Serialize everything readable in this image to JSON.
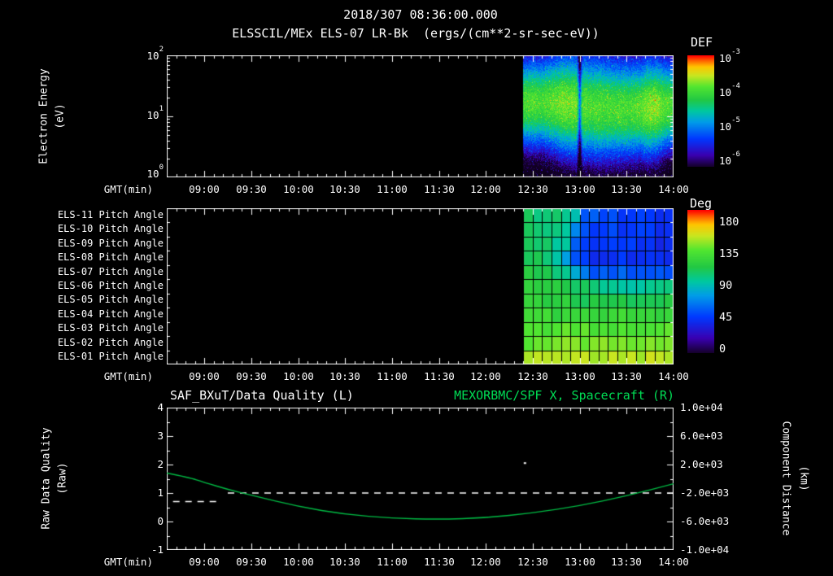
{
  "colors": {
    "background": "#000000",
    "foreground": "#ffffff",
    "title_green": "#00dd55",
    "curve_green": "#00bb44"
  },
  "header": {
    "datetime": "2018/307 08:36:00.000",
    "spectrogram_title": "ELSSCIL/MEx ELS-07 LR-Bk  (ergs/(cm**2-sr-sec-eV))"
  },
  "time_axis": {
    "label": "GMT(min)",
    "start": "08:36",
    "end": "14:00",
    "tick_labels": [
      "09:00",
      "09:30",
      "10:00",
      "10:30",
      "11:00",
      "11:30",
      "12:00",
      "12:30",
      "13:00",
      "13:30",
      "14:00"
    ]
  },
  "panel_energy": {
    "ylabel": [
      "Electron Energy",
      "(eV)"
    ],
    "ytick_exponents": [
      {
        "base": "10",
        "exp": "2"
      },
      {
        "base": "10",
        "exp": "1"
      },
      {
        "base": "10",
        "exp": "0"
      }
    ],
    "colorbar": {
      "title": "DEF",
      "ticks": [
        {
          "base": "10",
          "exp": "-3"
        },
        {
          "base": "10",
          "exp": "-4"
        },
        {
          "base": "10",
          "exp": "-5"
        },
        {
          "base": "10",
          "exp": "-6"
        }
      ]
    }
  },
  "panel_pitch": {
    "row_labels": [
      "ELS-11 Pitch Angle",
      "ELS-10 Pitch Angle",
      "ELS-09 Pitch Angle",
      "ELS-08 Pitch Angle",
      "ELS-07 Pitch Angle",
      "ELS-06 Pitch Angle",
      "ELS-05 Pitch Angle",
      "ELS-04 Pitch Angle",
      "ELS-03 Pitch Angle",
      "ELS-02 Pitch Angle",
      "ELS-01 Pitch Angle"
    ],
    "colorbar": {
      "title": "Deg",
      "tick_labels": [
        "180",
        "135",
        "90",
        "45",
        "0"
      ]
    }
  },
  "panel_quality": {
    "title_left": "SAF_BXuT/Data Quality (L)",
    "title_right": "MEXORBMC/SPF X, Spacecraft (R)",
    "ylabel_left": [
      "Raw Data Quality",
      "(Raw)"
    ],
    "ylabel_right": [
      "Component Distance",
      "(km)"
    ],
    "ytick_labels_left": [
      "4",
      "3",
      "2",
      "1",
      "0",
      "-1"
    ],
    "ytick_labels_right": [
      "1.0e+04",
      "6.0e+03",
      "2.0e+03",
      "-2.0e+03",
      "-6.0e+03",
      "-1.0e+04"
    ]
  },
  "chart_data": [
    {
      "type": "heatmap",
      "panel": "electron-energy-spectrogram",
      "title": "ELSSCIL/MEx ELS-07 LR-Bk",
      "units": "ergs/(cm**2-sr-sec-eV)",
      "colorbar_label": "DEF",
      "colorbar_range_log10": [
        -6,
        -3
      ],
      "x_range": [
        "08:36",
        "14:00"
      ],
      "y_axis": "Electron Energy (eV)",
      "y_range_ev": [
        1,
        100
      ],
      "y_scale": "log",
      "data_start": "12:24",
      "data_end": "14:00",
      "render_model": {
        "peak_log10_flux": -3.95,
        "peak_center_logE": 1.18,
        "bright_patches_rel_x": [
          0.3,
          0.86
        ],
        "dropout_time": "13:00",
        "description": "No data (black) before ~12:24. Bright green band ~7-40 eV near 1e-4, blue above ~60 eV, cyan fading to dark below ~5 eV, near-black with violet speckles below ~2 eV; brief dark dropout column near 13:00."
      }
    },
    {
      "type": "heatmap",
      "panel": "pitch-angles",
      "value_label": "Pitch Angle (Deg)",
      "value_range": [
        0,
        180
      ],
      "data_start": "12:24",
      "data_end": "14:00",
      "cell_minutes": 6,
      "rows": [
        {
          "label": "ELS-11",
          "points": [
            [
              "12:24",
              102
            ],
            [
              "12:54",
              96
            ],
            [
              "13:04",
              52
            ],
            [
              "14:00",
              42
            ]
          ]
        },
        {
          "label": "ELS-10",
          "points": [
            [
              "12:24",
              104
            ],
            [
              "12:52",
              94
            ],
            [
              "13:02",
              48
            ],
            [
              "14:00",
              40
            ]
          ]
        },
        {
          "label": "ELS-09",
          "points": [
            [
              "12:24",
              106
            ],
            [
              "12:50",
              92
            ],
            [
              "13:00",
              46
            ],
            [
              "14:00",
              38
            ]
          ]
        },
        {
          "label": "ELS-08",
          "points": [
            [
              "12:24",
              108
            ],
            [
              "12:48",
              90
            ],
            [
              "12:58",
              44
            ],
            [
              "14:00",
              40
            ]
          ]
        },
        {
          "label": "ELS-07",
          "points": [
            [
              "12:24",
              110
            ],
            [
              "12:52",
              96
            ],
            [
              "13:06",
              56
            ],
            [
              "14:00",
              50
            ]
          ]
        },
        {
          "label": "ELS-06",
          "points": [
            [
              "12:24",
              114
            ],
            [
              "13:02",
              102
            ],
            [
              "13:24",
              88
            ],
            [
              "14:00",
              96
            ]
          ]
        },
        {
          "label": "ELS-05",
          "points": [
            [
              "12:24",
              118
            ],
            [
              "13:10",
              106
            ],
            [
              "14:00",
              110
            ]
          ]
        },
        {
          "label": "ELS-04",
          "points": [
            [
              "12:24",
              122
            ],
            [
              "13:00",
              116
            ],
            [
              "14:00",
              120
            ]
          ]
        },
        {
          "label": "ELS-03",
          "points": [
            [
              "12:24",
              128
            ],
            [
              "14:00",
              128
            ]
          ]
        },
        {
          "label": "ELS-02",
          "points": [
            [
              "12:24",
              134
            ],
            [
              "14:00",
              138
            ]
          ]
        },
        {
          "label": "ELS-01",
          "points": [
            [
              "12:24",
              142
            ],
            [
              "14:00",
              146
            ]
          ]
        }
      ]
    },
    {
      "type": "line",
      "panel": "quality-and-distance",
      "xlabel": "GMT(min)",
      "ylim_left": [
        -1,
        4
      ],
      "ylim_right": [
        -10000,
        10000
      ],
      "series": [
        {
          "name": "SAF_BXuT/Data Quality (L)",
          "axis": "left",
          "color": "#ffffff",
          "style": "dashed",
          "segments": [
            {
              "t": [
                "08:40",
                "09:10"
              ],
              "value": 0.7
            },
            {
              "t": [
                "09:15",
                "14:00"
              ],
              "value": 1.0
            }
          ],
          "points": [
            {
              "t": "12:25",
              "value": 2.05
            }
          ]
        },
        {
          "name": "MEXORBMC/SPF X, Spacecraft (R)",
          "axis": "right",
          "color": "#00bb44",
          "style": "solid",
          "x": [
            "08:36",
            "08:50",
            "09:00",
            "09:15",
            "09:30",
            "10:00",
            "10:30",
            "11:00",
            "11:30",
            "12:00",
            "12:30",
            "13:00",
            "13:30",
            "14:00"
          ],
          "y_km": [
            800,
            200,
            -500,
            -1500,
            -2300,
            -3900,
            -5000,
            -5550,
            -5700,
            -5500,
            -4800,
            -3800,
            -2400,
            -700
          ]
        }
      ]
    }
  ]
}
